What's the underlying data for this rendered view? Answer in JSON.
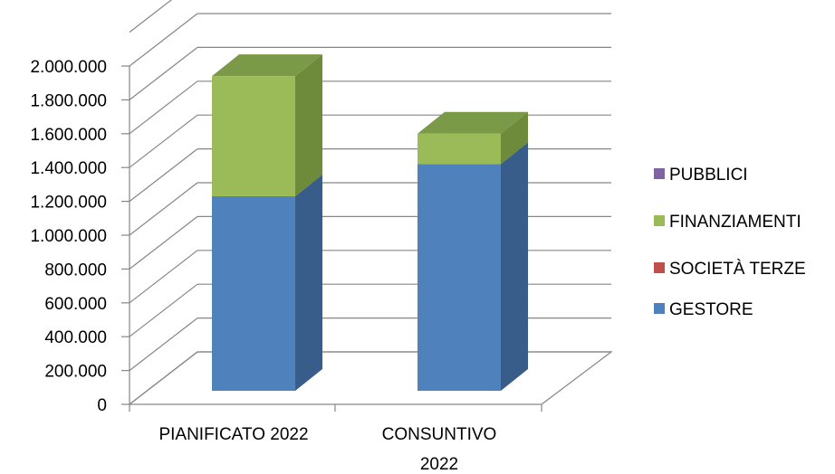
{
  "chart_data": {
    "type": "bar",
    "stacked": true,
    "three_d": true,
    "categories": [
      [
        "PIANIFICATO 2022"
      ],
      [
        "CONSUNTIVO",
        "2022"
      ]
    ],
    "series": [
      {
        "name": "GESTORE",
        "values": [
          1150000,
          1340000
        ],
        "color": "#4F81BD",
        "side": "#385D8A",
        "top": "#3F6DA3"
      },
      {
        "name": "SOCIETÀ TERZE",
        "values": [
          0,
          0
        ],
        "color": "#C0504D",
        "side": "#8C3836",
        "top": "#A34442"
      },
      {
        "name": "FINANZIAMENTI",
        "values": [
          710000,
          180000
        ],
        "color": "#9BBB59",
        "side": "#6E8A3B",
        "top": "#7B9A47"
      },
      {
        "name": "PUBBLICI",
        "values": [
          0,
          0
        ],
        "color": "#8064A2",
        "side": "#5E4A78",
        "top": "#6B5489"
      }
    ],
    "legend_order": [
      "PUBBLICI",
      "FINANZIAMENTI",
      "SOCIETÀ TERZE",
      "GESTORE"
    ],
    "yticks": [
      "0",
      "200.000",
      "400.000",
      "600.000",
      "800.000",
      "1.000.000",
      "1.200.000",
      "1.400.000",
      "1.600.000",
      "1.800.000",
      "2.000.000"
    ],
    "ylim": [
      0,
      2000000
    ],
    "grid": true,
    "legend_position": "right"
  }
}
